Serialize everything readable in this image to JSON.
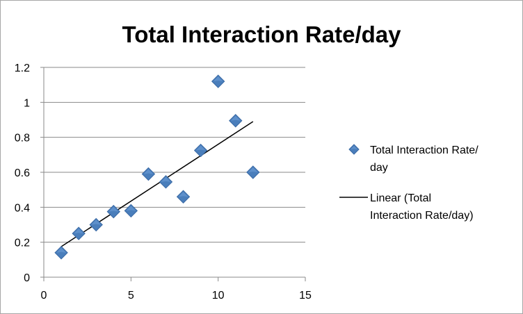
{
  "chart_data": {
    "type": "scatter",
    "title": "Total Interaction Rate/day",
    "xlabel": "",
    "ylabel": "",
    "xlim": [
      0,
      15
    ],
    "ylim": [
      0,
      1.2
    ],
    "x_ticks": [
      0,
      5,
      10,
      15
    ],
    "y_ticks": [
      0,
      0.2,
      0.4,
      0.6,
      0.8,
      1,
      1.2
    ],
    "x_tick_labels": [
      "0",
      "5",
      "10",
      "15"
    ],
    "y_tick_labels": [
      "0",
      "0.2",
      "0.4",
      "0.6",
      "0.8",
      "1",
      "1.2"
    ],
    "grid": "horizontal",
    "legend_position": "right",
    "series": [
      {
        "name": "Total Interaction Rate/day",
        "marker": "diamond",
        "color": "#4a7ebb",
        "x": [
          1,
          2,
          3,
          4,
          5,
          6,
          7,
          8,
          9,
          10,
          11,
          12
        ],
        "y": [
          0.14,
          0.25,
          0.3,
          0.375,
          0.38,
          0.59,
          0.545,
          0.46,
          0.725,
          1.12,
          0.895,
          0.6
        ]
      }
    ],
    "trendline": {
      "name": "Linear (Total Interaction Rate/day)",
      "type": "linear",
      "color": "#000000",
      "x": [
        1,
        12
      ],
      "y": [
        0.175,
        0.89
      ]
    },
    "legend": {
      "entries": [
        {
          "lines": [
            "Total Interaction Rate/",
            "day"
          ]
        },
        {
          "lines": [
            "Linear (Total",
            "Interaction Rate/day)"
          ]
        }
      ]
    }
  }
}
